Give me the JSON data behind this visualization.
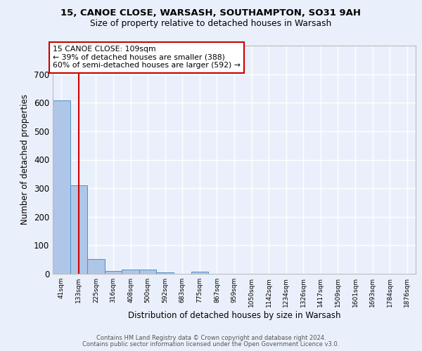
{
  "title_line1": "15, CANOE CLOSE, WARSASH, SOUTHAMPTON, SO31 9AH",
  "title_line2": "Size of property relative to detached houses in Warsash",
  "xlabel": "Distribution of detached houses by size in Warsash",
  "ylabel": "Number of detached properties",
  "footnote1": "Contains HM Land Registry data © Crown copyright and database right 2024.",
  "footnote2": "Contains public sector information licensed under the Open Government Licence v3.0.",
  "bin_labels": [
    "41sqm",
    "133sqm",
    "225sqm",
    "316sqm",
    "408sqm",
    "500sqm",
    "592sqm",
    "683sqm",
    "775sqm",
    "867sqm",
    "959sqm",
    "1050sqm",
    "1142sqm",
    "1234sqm",
    "1326sqm",
    "1417sqm",
    "1509sqm",
    "1601sqm",
    "1693sqm",
    "1784sqm",
    "1876sqm"
  ],
  "bar_heights": [
    608,
    310,
    52,
    10,
    14,
    14,
    5,
    0,
    8,
    0,
    0,
    0,
    0,
    0,
    0,
    0,
    0,
    0,
    0,
    0,
    0
  ],
  "bar_color": "#aec6e8",
  "bar_edge_color": "#5090c8",
  "background_color": "#eaf0fb",
  "grid_color": "#ffffff",
  "property_label": "15 CANOE CLOSE: 109sqm",
  "annotation_line1": "← 39% of detached houses are smaller (388)",
  "annotation_line2": "60% of semi-detached houses are larger (592) →",
  "vline_color": "#cc0000",
  "box_color": "#ffffff",
  "box_edge_color": "#cc0000",
  "ylim": [
    0,
    800
  ],
  "yticks": [
    0,
    100,
    200,
    300,
    400,
    500,
    600,
    700
  ]
}
